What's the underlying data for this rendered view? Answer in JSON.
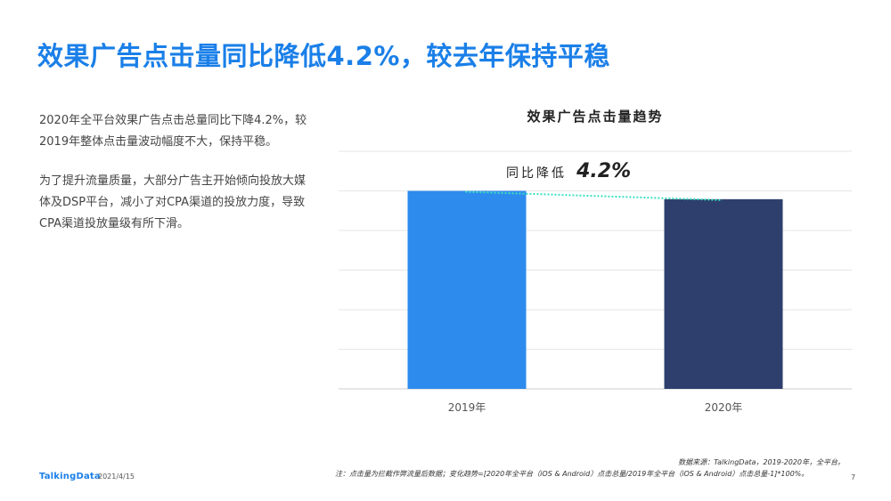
{
  "page": {
    "title": "效果广告点击量同比降低4.2%，较去年保持平稳",
    "paragraph1": "2020年全平台效果广告点击总量同比下降4.2%，较2019年整体点击量波动幅度不大，保持平稳。",
    "paragraph2": "为了提升流量质量，大部分广告主开始倾向投放大媒体及DSP平台，减小了对CPA渠道的投放力度，导致CPA渠道投放量级有所下滑。"
  },
  "chart": {
    "title": "效果广告点击量趋势",
    "yoy_label": "同比降低",
    "yoy_value": "4.2%"
  },
  "chart_data": {
    "type": "bar",
    "title": "效果广告点击量趋势",
    "categories": [
      "2019年",
      "2020年"
    ],
    "values": [
      100,
      95.8
    ],
    "ylim": [
      0,
      120
    ],
    "grid": true,
    "colors": [
      "#2e8bee",
      "#2e3f6e"
    ],
    "trend_color": "#3de0c0",
    "annotation": "同比降低 4.2%"
  },
  "footer": {
    "source": "数据来源：TalkingData，2019-2020年，全平台。",
    "note": "注：点击量为拦截作弊流量后数据；变化趋势=[2020年全平台（iOS & Android）点击总量/2019年全平台（iOS & Android）点击总量-1]*100%。",
    "logo": "TalkingData",
    "date": "2021/4/15",
    "page_number": "7"
  }
}
